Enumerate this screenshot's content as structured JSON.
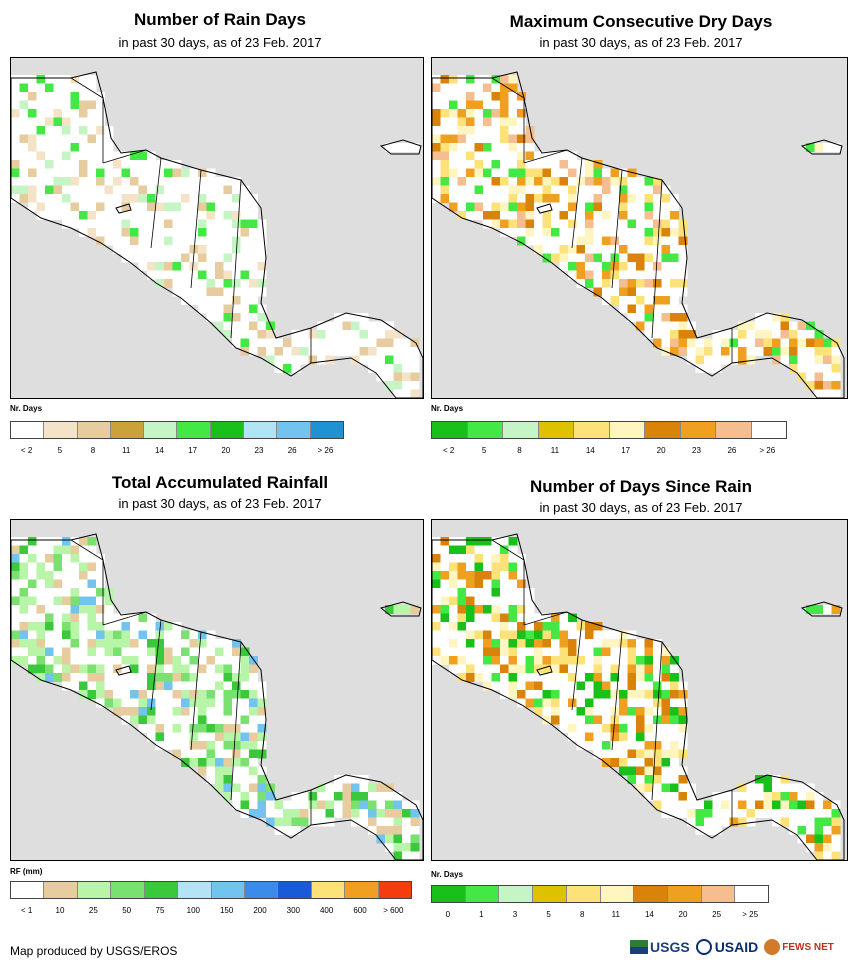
{
  "panels": [
    {
      "id": "rain-days",
      "title": "Number of Rain Days",
      "subtitle": "in past 30 days, as of 23 Feb. 2017",
      "legend_title": "Nr. Days",
      "legend_colors": [
        "#ffffff",
        "#f5e3c8",
        "#e6cc9e",
        "#c9a23a",
        "#c5f5c5",
        "#44e844",
        "#19c019",
        "#b2e4f5",
        "#72c4ee",
        "#1e93d4"
      ],
      "legend_labels": [
        "< 2",
        "5",
        "8",
        "11",
        "14",
        "17",
        "20",
        "23",
        "26",
        "> 26"
      ],
      "fill_palette": [
        "#ffffff",
        "#ffffff",
        "#ffffff",
        "#ffffff",
        "#f5e3c8",
        "#e6cc9e",
        "#c5f5c5",
        "#44e844"
      ]
    },
    {
      "id": "max-dry-days",
      "title": "Maximum Consecutive Dry Days",
      "subtitle": "in past 30 days, as of 23 Feb. 2017",
      "legend_title": "Nr. Days",
      "legend_colors": [
        "#19c019",
        "#44e844",
        "#c5f5c5",
        "#dcc200",
        "#fde27a",
        "#fff5c0",
        "#d9830a",
        "#f0a020",
        "#f5be90",
        "#ffffff"
      ],
      "legend_labels": [
        "< 2",
        "5",
        "8",
        "11",
        "14",
        "17",
        "20",
        "23",
        "26",
        "> 26"
      ],
      "fill_palette": [
        "#ffffff",
        "#ffffff",
        "#fff5c0",
        "#fde27a",
        "#f0a020",
        "#d9830a",
        "#f5be90",
        "#44e844"
      ]
    },
    {
      "id": "total-rainfall",
      "title": "Total Accumulated Rainfall",
      "subtitle": "in past 30 days, as of 23 Feb. 2017",
      "legend_title": "RF (mm)",
      "legend_colors": [
        "#ffffff",
        "#e6cc9e",
        "#b8f5a8",
        "#7ae070",
        "#3cc83c",
        "#b2e4f5",
        "#72c4ee",
        "#3a8ce8",
        "#1a5ad6",
        "#fde27a",
        "#f0a020",
        "#f53c10"
      ],
      "legend_labels": [
        "< 1",
        "10",
        "25",
        "50",
        "75",
        "100",
        "150",
        "200",
        "300",
        "400",
        "600",
        "> 600"
      ],
      "fill_palette": [
        "#ffffff",
        "#ffffff",
        "#e6cc9e",
        "#b8f5a8",
        "#b8f5a8",
        "#7ae070",
        "#3cc83c",
        "#72c4ee"
      ]
    },
    {
      "id": "days-since-rain",
      "title": "Number of Days Since Rain",
      "subtitle": "in past 30 days, as of 23 Feb. 2017",
      "legend_title": "Nr. Days",
      "legend_colors": [
        "#19c019",
        "#44e844",
        "#c5f5c5",
        "#dcc200",
        "#fde27a",
        "#fff5c0",
        "#d9830a",
        "#f0a020",
        "#f5be90",
        "#ffffff"
      ],
      "legend_labels": [
        "0",
        "1",
        "3",
        "5",
        "8",
        "11",
        "14",
        "20",
        "25",
        "> 25"
      ],
      "fill_palette": [
        "#ffffff",
        "#ffffff",
        "#fff5c0",
        "#fde27a",
        "#f0a020",
        "#d9830a",
        "#44e844",
        "#19c019"
      ]
    }
  ],
  "footer": {
    "credit": "Map produced by USGS/EROS",
    "logo_usgs": "USGS",
    "logo_usaid": "USAID",
    "logo_fews": "FEWS NET"
  }
}
